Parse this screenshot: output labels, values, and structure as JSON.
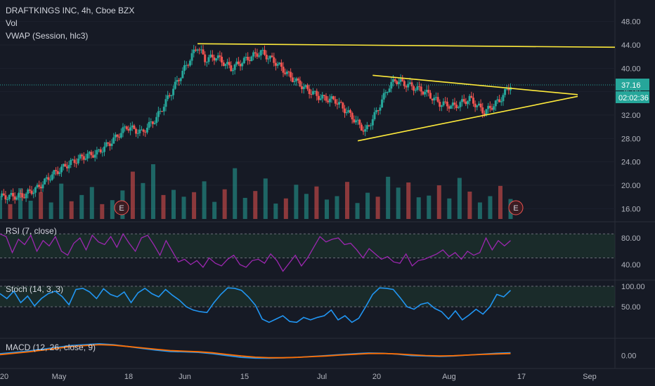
{
  "colors": {
    "background": "#161a25",
    "up": "#26a69a",
    "down": "#ef5350",
    "trendline": "#ffeb3b",
    "rsi": "#9c27b0",
    "stoch": "#2196f3",
    "macd": "#2196f3",
    "signal": "#ff6d00",
    "band": "#1f3b2f",
    "price_tag": "#26a69a"
  },
  "header": {
    "title": "DRAFTKINGS INC, 4h, Cboe BZX",
    "vol_label": "Vol",
    "vwap_label": "VWAP (Session, hlc3)"
  },
  "price_axis": {
    "ticks": [
      "48.00",
      "44.00",
      "40.00",
      "36.00",
      "32.00",
      "28.00",
      "24.00",
      "20.00",
      "16.00"
    ],
    "last_price": "37.16",
    "countdown": "02:02:36"
  },
  "rsi_panel": {
    "label": "RSI (7, close)",
    "ticks": [
      "80.00",
      "40.00"
    ]
  },
  "stoch_panel": {
    "label": "Stoch (14, 3, 3)",
    "ticks": [
      "100.00",
      "50.00"
    ]
  },
  "macd_panel": {
    "label": "MACD (12, 26, close, 9)",
    "ticks": [
      "0.00"
    ]
  },
  "x_axis": {
    "ticks": [
      "20",
      "May",
      "18",
      "Jun",
      "15",
      "Jul",
      "20",
      "Aug",
      "17",
      "Sep"
    ]
  },
  "earnings_markers": [
    "E",
    "E"
  ],
  "chart_data": {
    "type": "candlestick",
    "title": "DRAFTKINGS INC, 4h, Cboe BZX",
    "ylim": [
      14,
      50
    ],
    "last_close": 37.16,
    "price_path": [
      [
        0,
        18.0
      ],
      [
        6,
        18.2
      ],
      [
        10,
        19.5
      ],
      [
        14,
        21.8
      ],
      [
        18,
        23.5
      ],
      [
        22,
        24.8
      ],
      [
        26,
        25.5
      ],
      [
        30,
        27.5
      ],
      [
        34,
        30.0
      ],
      [
        38,
        29.0
      ],
      [
        42,
        31.5
      ],
      [
        46,
        36.0
      ],
      [
        50,
        40.5
      ],
      [
        53,
        43.8
      ],
      [
        55,
        41.5
      ],
      [
        58,
        42.0
      ],
      [
        62,
        40.0
      ],
      [
        66,
        41.5
      ],
      [
        70,
        42.8
      ],
      [
        74,
        41.0
      ],
      [
        78,
        38.5
      ],
      [
        82,
        36.5
      ],
      [
        86,
        35.0
      ],
      [
        90,
        34.5
      ],
      [
        94,
        32.0
      ],
      [
        98,
        29.2
      ],
      [
        101,
        32.5
      ],
      [
        104,
        36.5
      ],
      [
        106,
        38.0
      ],
      [
        110,
        37.0
      ],
      [
        114,
        36.0
      ],
      [
        118,
        34.0
      ],
      [
        122,
        33.5
      ],
      [
        126,
        34.8
      ],
      [
        130,
        32.5
      ],
      [
        134,
        34.5
      ],
      [
        137,
        37.2
      ]
    ],
    "volume": [
      4.0,
      2.6,
      5.4,
      3.2,
      4.7,
      2.9,
      6.2,
      3.1,
      4.2,
      5.6,
      2.6,
      3.3,
      5.0,
      8.3,
      6.3,
      9.6,
      4.2,
      5.1,
      3.9,
      4.7,
      6.6,
      3.0,
      5.2,
      8.9,
      3.7,
      4.9,
      7.1,
      2.7,
      3.6,
      6.0,
      4.4,
      5.7,
      3.4,
      4.0,
      6.5,
      2.8,
      4.6,
      3.9,
      7.4,
      5.5,
      6.4,
      3.8,
      4.1,
      5.9,
      3.6,
      7.2,
      4.8,
      2.9,
      4.0,
      5.8,
      3.5
    ],
    "trendlines": [
      {
        "name": "resistance-top",
        "from": [
          53,
          44.2
        ],
        "to": [
          165,
          43.6
        ]
      },
      {
        "name": "triangle-upper",
        "from": [
          100,
          38.8
        ],
        "to": [
          155,
          35.5
        ]
      },
      {
        "name": "triangle-lower",
        "from": [
          96,
          27.6
        ],
        "to": [
          155,
          35.2
        ]
      }
    ],
    "rsi": {
      "ylim": [
        20,
        100
      ],
      "band": [
        50,
        86
      ],
      "values": [
        86,
        82,
        58,
        78,
        70,
        84,
        60,
        76,
        68,
        82,
        60,
        54,
        72,
        80,
        62,
        84,
        74,
        70,
        82,
        66,
        86,
        72,
        60,
        80,
        84,
        70,
        54,
        76,
        60,
        44,
        48,
        40,
        46,
        36,
        50,
        42,
        38,
        48,
        54,
        40,
        36,
        46,
        48,
        42,
        56,
        46,
        30,
        42,
        54,
        38,
        50,
        66,
        82,
        74,
        78,
        80,
        70,
        72,
        62,
        50,
        64,
        56,
        48,
        52,
        44,
        42,
        56,
        38,
        46,
        48,
        52,
        56,
        62,
        52,
        58,
        48,
        60,
        54,
        58,
        80,
        62,
        76,
        68,
        76
      ]
    },
    "stoch": {
      "ylim": [
        -20,
        110
      ],
      "band": [
        50,
        100
      ],
      "values": [
        82,
        70,
        88,
        60,
        76,
        52,
        70,
        82,
        88,
        75,
        55,
        92,
        95,
        86,
        70,
        94,
        80,
        74,
        86,
        60,
        84,
        95,
        82,
        74,
        92,
        78,
        66,
        50,
        42,
        38,
        36,
        60,
        80,
        96,
        95,
        90,
        74,
        54,
        20,
        12,
        20,
        28,
        14,
        12,
        24,
        18,
        24,
        28,
        42,
        18,
        28,
        12,
        22,
        50,
        80,
        96,
        95,
        92,
        72,
        50,
        44,
        56,
        60,
        46,
        38,
        20,
        40,
        18,
        30,
        44,
        32,
        50,
        80,
        74,
        90
      ]
    },
    "macd": {
      "ylim": [
        -1.2,
        1.6
      ],
      "macd": [
        0.2,
        0.35,
        0.5,
        0.7,
        0.9,
        1.1,
        1.2,
        1.3,
        1.2,
        1.0,
        0.8,
        0.6,
        0.45,
        0.4,
        0.35,
        0.2,
        0.0,
        -0.2,
        -0.28,
        -0.3,
        -0.25,
        -0.2,
        -0.1,
        0.0,
        0.1,
        0.2,
        0.28,
        0.25,
        0.15,
        0.0,
        -0.05,
        -0.1,
        -0.05,
        0.05,
        0.15,
        0.25,
        0.3
      ],
      "signal": [
        0.1,
        0.25,
        0.4,
        0.6,
        0.8,
        1.0,
        1.1,
        1.2,
        1.15,
        1.0,
        0.85,
        0.7,
        0.55,
        0.48,
        0.42,
        0.3,
        0.12,
        -0.05,
        -0.18,
        -0.24,
        -0.24,
        -0.2,
        -0.12,
        -0.05,
        0.05,
        0.14,
        0.22,
        0.23,
        0.18,
        0.08,
        0.0,
        -0.05,
        -0.02,
        0.05,
        0.12,
        0.18,
        0.22
      ]
    }
  }
}
